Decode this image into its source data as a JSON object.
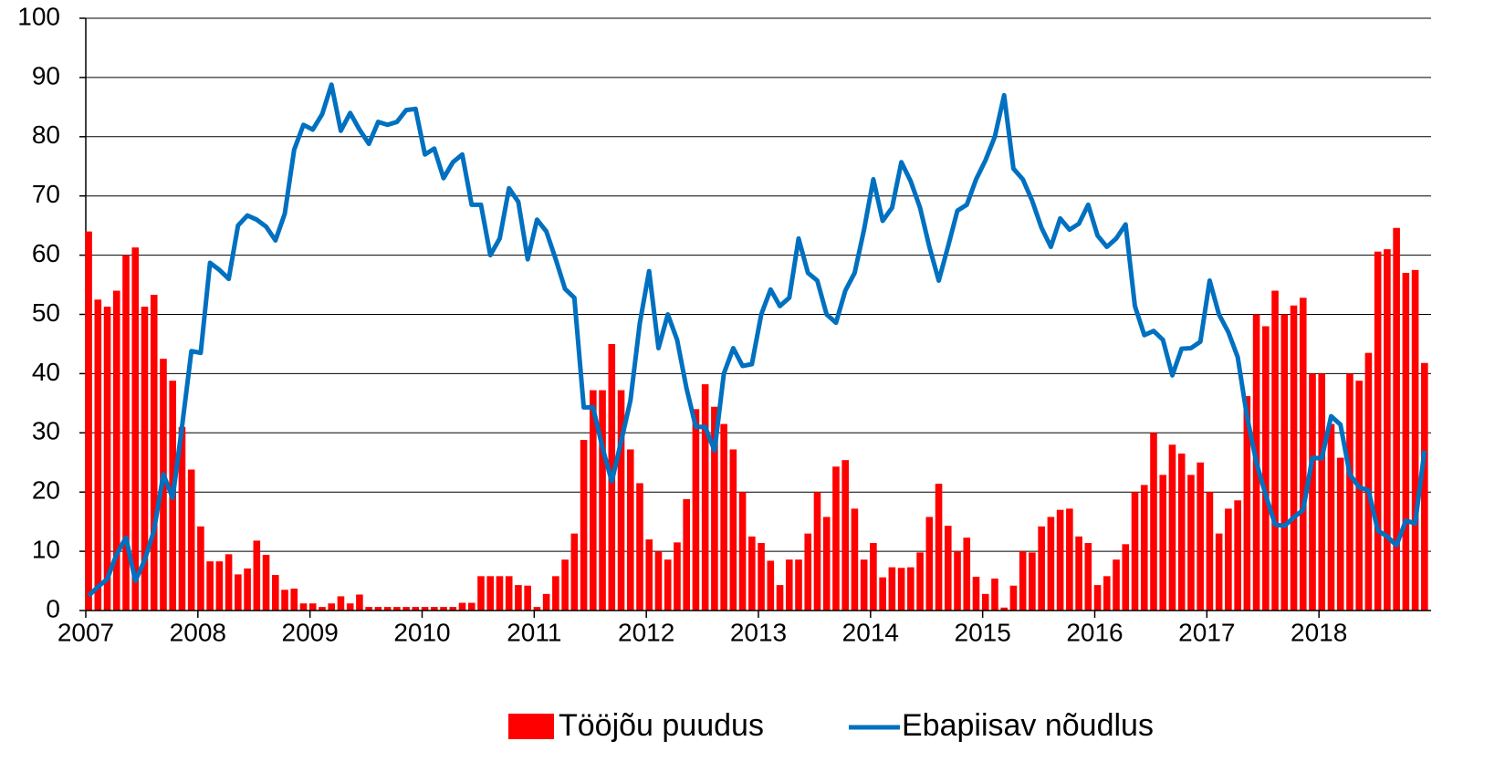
{
  "chart_data": {
    "type": "bar-line",
    "categories": [
      "2007",
      null,
      null,
      null,
      null,
      null,
      null,
      null,
      null,
      null,
      null,
      null,
      "2008",
      null,
      null,
      null,
      null,
      null,
      null,
      null,
      null,
      null,
      null,
      null,
      "2009",
      null,
      null,
      null,
      null,
      null,
      null,
      null,
      null,
      null,
      null,
      null,
      "2010",
      null,
      null,
      null,
      null,
      null,
      null,
      null,
      null,
      null,
      null,
      null,
      "2011",
      null,
      null,
      null,
      null,
      null,
      null,
      null,
      null,
      null,
      null,
      null,
      "2012",
      null,
      null,
      null,
      null,
      null,
      null,
      null,
      null,
      null,
      null,
      null,
      "2013",
      null,
      null,
      null,
      null,
      null,
      null,
      null,
      null,
      null,
      null,
      null,
      "2014",
      null,
      null,
      null,
      null,
      null,
      null,
      null,
      null,
      null,
      null,
      null,
      "2015",
      null,
      null,
      null,
      null,
      null,
      null,
      null,
      null,
      null,
      null,
      null,
      "2016",
      null,
      null,
      null,
      null,
      null,
      null,
      null,
      null,
      null,
      null,
      null,
      "2017",
      null,
      null,
      null,
      null,
      null,
      null,
      null,
      null,
      null,
      null,
      null,
      "2018",
      null,
      null,
      null,
      null,
      null,
      null,
      null,
      null,
      null,
      null,
      null
    ],
    "series": [
      {
        "name": "Tööjõu puudus",
        "type": "bar",
        "color": "#ff0000",
        "values": [
          64,
          52.5,
          51.3,
          54,
          60,
          61.3,
          51.3,
          53.3,
          42.5,
          38.8,
          31,
          23.8,
          14.2,
          8.3,
          8.3,
          9.5,
          6.1,
          7.1,
          11.8,
          9.4,
          6,
          3.5,
          3.7,
          1.2,
          1.2,
          0.6,
          1.2,
          2.4,
          1.2,
          2.7,
          0.6,
          0.6,
          0.6,
          0.6,
          0.6,
          0.6,
          0.6,
          0.6,
          0.6,
          0.6,
          1.3,
          1.3,
          5.8,
          5.8,
          5.8,
          5.8,
          4.3,
          4.2,
          0.6,
          2.8,
          5.8,
          8.6,
          13,
          28.8,
          37.2,
          37.2,
          45,
          37.2,
          27.2,
          21.5,
          12,
          10,
          8.6,
          11.5,
          18.8,
          34,
          38.2,
          34.4,
          31.5,
          27.2,
          20,
          12.5,
          11.4,
          8.4,
          4.3,
          8.6,
          8.6,
          13,
          20,
          15.8,
          24.3,
          25.4,
          17.2,
          8.6,
          11.4,
          5.6,
          7.3,
          7.2,
          7.3,
          9.8,
          15.8,
          21.4,
          14.3,
          10,
          12.3,
          5.7,
          2.8,
          5.4,
          0.5,
          4.2,
          10,
          9.8,
          14.2,
          15.8,
          17,
          17.2,
          12.5,
          11.4,
          4.3,
          5.8,
          8.6,
          11.2,
          20,
          21.2,
          30,
          22.9,
          28,
          26.5,
          22.9,
          25,
          20,
          13,
          17.2,
          18.6,
          36.2,
          50,
          48,
          54,
          50,
          51.5,
          52.8,
          40,
          40,
          31.5,
          25.8,
          40,
          38.8,
          43.5,
          60.6,
          61,
          64.6,
          57,
          57.5,
          41.8
        ]
      },
      {
        "name": "Ebapiisav nõudlus",
        "type": "line",
        "color": "#0070c0",
        "values": [
          2.5,
          4,
          5.3,
          9.5,
          12.3,
          5,
          8.5,
          13.5,
          23,
          19,
          31,
          43.8,
          43.5,
          58.7,
          57.5,
          56,
          65,
          66.7,
          66,
          64.8,
          62.5,
          67,
          77.8,
          82,
          81.2,
          83.8,
          88.8,
          81,
          84,
          81.2,
          78.8,
          82.5,
          82,
          82.5,
          84.5,
          84.7,
          77,
          78,
          73,
          75.7,
          77,
          68.5,
          68.5,
          60,
          62.8,
          71.3,
          69,
          59.3,
          66,
          64,
          59.3,
          54.3,
          52.8,
          34.3,
          34.3,
          27.5,
          21.8,
          28.5,
          35.5,
          48.5,
          57.3,
          44.3,
          50,
          45.7,
          37.5,
          31,
          31,
          27,
          40,
          44.3,
          41.3,
          41.6,
          50,
          54.2,
          51.4,
          52.8,
          62.8,
          57,
          55.7,
          50,
          48.6,
          54,
          57,
          64.3,
          72.8,
          65.8,
          68,
          75.7,
          72.5,
          68,
          61.4,
          55.7,
          61.5,
          67.5,
          68.5,
          72.8,
          76,
          80,
          87,
          74.6,
          72.8,
          69.2,
          64.6,
          61.4,
          66.2,
          64.3,
          65.3,
          68.5,
          63.3,
          61.4,
          62.8,
          65.2,
          51.4,
          46.5,
          47.2,
          45.7,
          39.7,
          44.2,
          44.3,
          45.4,
          55.7,
          50,
          47,
          42.8,
          32.8,
          25,
          19.5,
          14.5,
          14.3,
          15.7,
          17,
          25.8,
          25.7,
          32.8,
          31.4,
          23,
          20.8,
          20.3,
          13.5,
          12.5,
          11,
          15.2,
          14.7,
          27
        ]
      }
    ],
    "ylim": [
      0,
      100
    ],
    "yticks": [
      0,
      10,
      20,
      30,
      40,
      50,
      60,
      70,
      80,
      90,
      100
    ],
    "grid": true
  }
}
